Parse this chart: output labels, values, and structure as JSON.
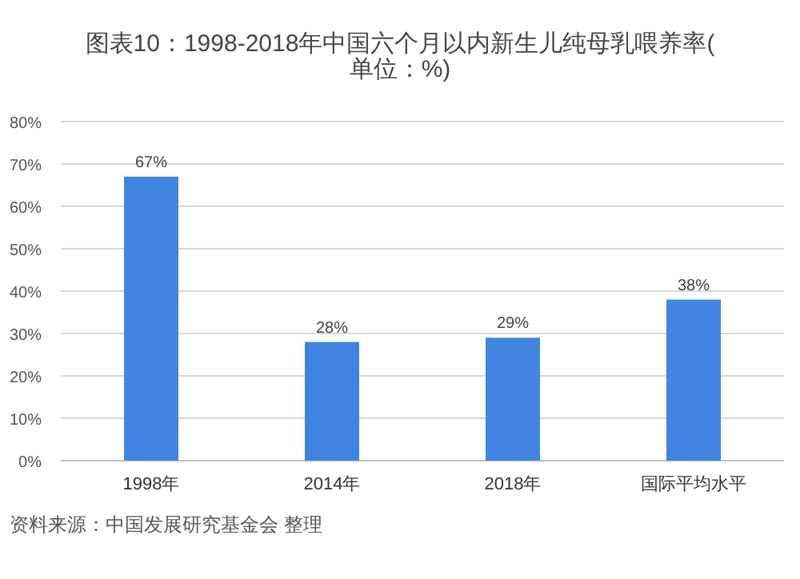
{
  "chart_data": {
    "type": "bar",
    "title": "图表10：1998-2018年中国六个月以内新生儿纯母乳喂养率(单位：%)",
    "categories": [
      "1998年",
      "2014年",
      "2018年",
      "国际平均水平"
    ],
    "values": [
      67,
      28,
      29,
      38
    ],
    "value_labels": [
      "67%",
      "28%",
      "29%",
      "38%"
    ],
    "color": "#4285e0",
    "ylim": [
      0,
      80
    ],
    "yticks": [
      {
        "value": 0,
        "label": "0%"
      },
      {
        "value": 10,
        "label": "10%"
      },
      {
        "value": 20,
        "label": "20%"
      },
      {
        "value": 30,
        "label": "30%"
      },
      {
        "value": 40,
        "label": "40%"
      },
      {
        "value": 50,
        "label": "50%"
      },
      {
        "value": 60,
        "label": "60%"
      },
      {
        "value": 70,
        "label": "70%"
      },
      {
        "value": 80,
        "label": "80%"
      }
    ],
    "grid": "y",
    "annotations": [
      "资料来源：中国发展研究基金会 整理"
    ]
  }
}
